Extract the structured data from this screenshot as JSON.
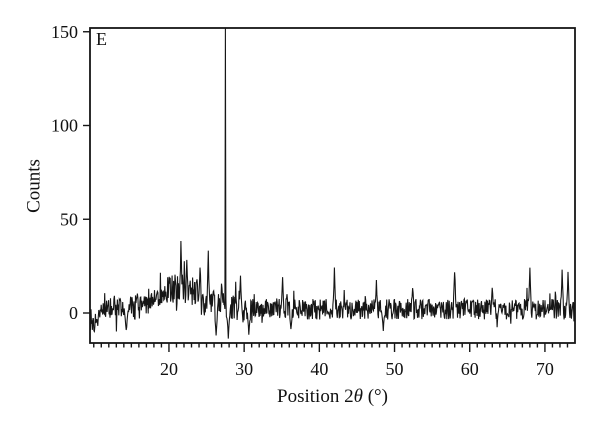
{
  "figure": {
    "panel_label": "E",
    "ylabel": "Counts",
    "xlabel_prefix": "Position 2",
    "xlabel_theta": "θ",
    "xlabel_suffix": " (°)"
  },
  "chart_data": {
    "type": "line",
    "title": "",
    "panel_label": "E",
    "xlabel": "Position 2θ (°)",
    "ylabel": "Counts",
    "xlim": [
      9.5,
      74
    ],
    "ylim": [
      -16,
      152
    ],
    "xticks_major": [
      20,
      30,
      40,
      50,
      60,
      70
    ],
    "xtick_minor_step": 1,
    "yticks": [
      0,
      50,
      100,
      150
    ],
    "box": true,
    "grid": false,
    "legend": false,
    "line_color": "#161616",
    "background": "#ffffff",
    "series_description": "noisy powder XRD trace",
    "baseline_mean": 2,
    "noise_amplitude": 8,
    "amorphous_hump": {
      "center": 21.5,
      "sigma": 3.0,
      "height": 11
    },
    "main_peak": {
      "two_theta": 27.5,
      "counts": 152,
      "clipped_at_top": true
    },
    "secondary_peaks": [
      {
        "two_theta": 21.6,
        "counts": 43
      },
      {
        "two_theta": 22.4,
        "counts": 36
      },
      {
        "two_theta": 24.1,
        "counts": 31
      },
      {
        "two_theta": 25.2,
        "counts": 34
      },
      {
        "two_theta": 29.5,
        "counts": 22
      },
      {
        "two_theta": 35.1,
        "counts": 21
      },
      {
        "two_theta": 42.0,
        "counts": 26
      },
      {
        "two_theta": 47.6,
        "counts": 18
      },
      {
        "two_theta": 52.4,
        "counts": 17
      },
      {
        "two_theta": 58.0,
        "counts": 27
      },
      {
        "two_theta": 63.0,
        "counts": 16
      },
      {
        "two_theta": 68.0,
        "counts": 27
      },
      {
        "two_theta": 72.3,
        "counts": 28
      },
      {
        "two_theta": 73.1,
        "counts": 22
      }
    ],
    "dips": [
      {
        "two_theta": 14.3,
        "counts": -12
      },
      {
        "two_theta": 26.3,
        "counts": -13
      },
      {
        "two_theta": 27.9,
        "counts": -14
      },
      {
        "two_theta": 30.6,
        "counts": -13
      },
      {
        "two_theta": 36.2,
        "counts": -11
      },
      {
        "two_theta": 48.5,
        "counts": -10
      }
    ]
  }
}
